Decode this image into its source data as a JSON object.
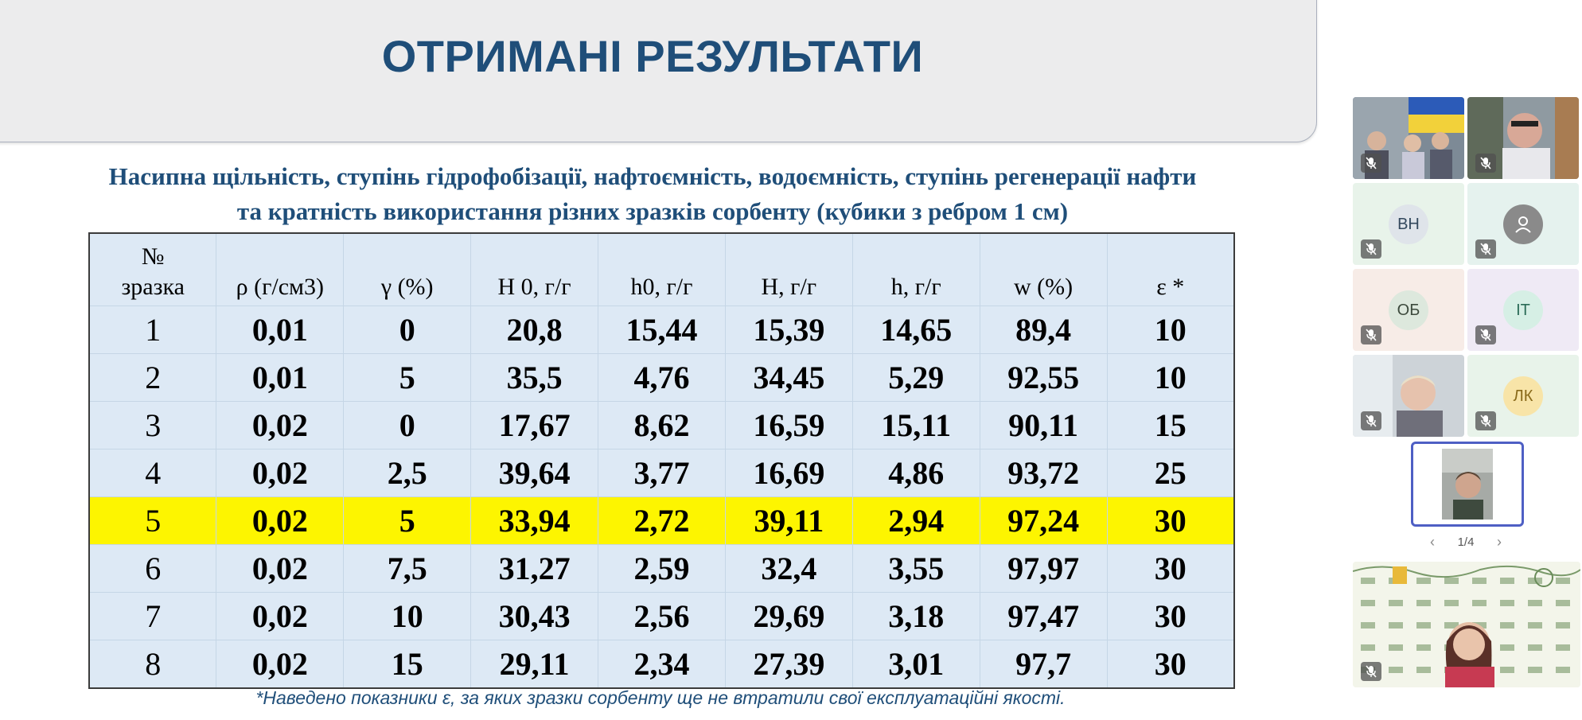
{
  "slide": {
    "title": "ОТРИМАНІ РЕЗУЛЬТАТИ",
    "subtitle_line1": "Насипна щільність, ступінь гідрофобізації, нафтоємність, водоємність, ступінь регенерації нафти",
    "subtitle_line2": "та кратність використання різних зразків сорбенту (кубики з ребром 1 см)",
    "footnote": "*Наведено показники ε, за яких зразки сорбенту ще не втратили свої експлуатаційні якості."
  },
  "table": {
    "headers": [
      "№ зразка",
      "ρ (г/см3)",
      "γ (%)",
      "Н 0, г/г",
      "h0, г/г",
      "Н, г/г",
      "h, г/г",
      "w (%)",
      "ε *"
    ],
    "highlight_row_index": 4,
    "highlight_color": "#fdf500",
    "rows": [
      [
        "1",
        "0,01",
        "0",
        "20,8",
        "15,44",
        "15,39",
        "14,65",
        "89,4",
        "10"
      ],
      [
        "2",
        "0,01",
        "5",
        "35,5",
        "4,76",
        "34,45",
        "5,29",
        "92,55",
        "10"
      ],
      [
        "3",
        "0,02",
        "0",
        "17,67",
        "8,62",
        "16,59",
        "15,11",
        "90,11",
        "15"
      ],
      [
        "4",
        "0,02",
        "2,5",
        "39,64",
        "3,77",
        "16,69",
        "4,86",
        "93,72",
        "25"
      ],
      [
        "5",
        "0,02",
        "5",
        "33,94",
        "2,72",
        "39,11",
        "2,94",
        "97,24",
        "30"
      ],
      [
        "6",
        "0,02",
        "7,5",
        "31,27",
        "2,59",
        "32,4",
        "3,55",
        "97,97",
        "30"
      ],
      [
        "7",
        "0,02",
        "10",
        "30,43",
        "2,56",
        "29,69",
        "3,18",
        "97,47",
        "30"
      ],
      [
        "8",
        "0,02",
        "15",
        "29,11",
        "2,34",
        "27,39",
        "3,01",
        "97,7",
        "30"
      ]
    ]
  },
  "participants": {
    "tiles": [
      {
        "kind": "video",
        "icon": "muted-mic-icon"
      },
      {
        "kind": "video",
        "icon": "muted-mic-icon"
      },
      {
        "kind": "initials",
        "initials": "ВН",
        "avatar_bg": "#dfe4ea",
        "text_color": "#34495e",
        "icon": "muted-mic-icon"
      },
      {
        "kind": "generic",
        "avatar_bg": "#8a8a8a",
        "icon": "muted-mic-icon"
      },
      {
        "kind": "initials",
        "initials": "ОБ",
        "avatar_bg": "#dde8dd",
        "text_color": "#3d4a3d",
        "icon": "muted-mic-icon"
      },
      {
        "kind": "initials",
        "initials": "ІТ",
        "avatar_bg": "#d6efe5",
        "text_color": "#2b6b57",
        "icon": "muted-mic-icon"
      },
      {
        "kind": "video",
        "icon": "muted-mic-icon"
      },
      {
        "kind": "initials",
        "initials": "ЛК",
        "avatar_bg": "#f8e4a8",
        "text_color": "#8a6a1a",
        "icon": "muted-mic-icon"
      }
    ],
    "page_indicator": "1/4",
    "prev_icon": "chevron-left-icon",
    "next_icon": "chevron-right-icon",
    "active_speaker_border": "#4e5fc4"
  }
}
